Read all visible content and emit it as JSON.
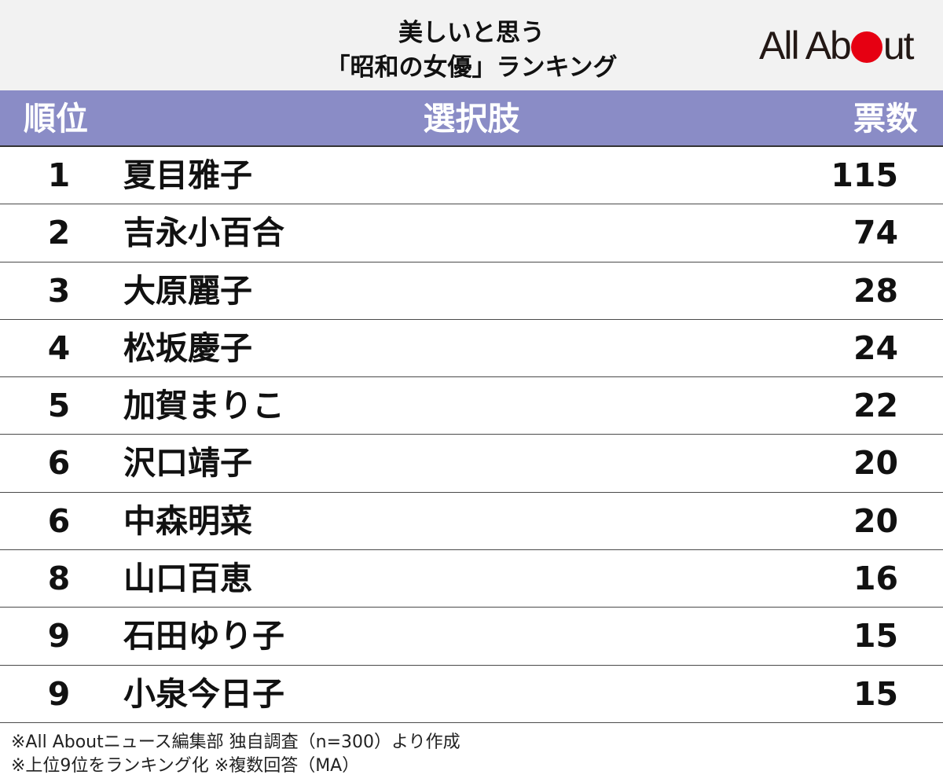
{
  "title": {
    "line1": "美しいと思う",
    "line2": "「昭和の女優」ランキング"
  },
  "logo": {
    "text_before": "All Ab",
    "text_after": "ut",
    "dot_color": "#e60012"
  },
  "colors": {
    "header_bg": "#8a8cc6",
    "title_bg": "#f2f2f2",
    "header_text": "#ffffff"
  },
  "chart_data": {
    "type": "table",
    "columns": [
      "順位",
      "選択肢",
      "票数"
    ],
    "rows": [
      {
        "rank": "1",
        "name": "夏目雅子",
        "votes": 115
      },
      {
        "rank": "2",
        "name": "吉永小百合",
        "votes": 74
      },
      {
        "rank": "3",
        "name": "大原麗子",
        "votes": 28
      },
      {
        "rank": "4",
        "name": "松坂慶子",
        "votes": 24
      },
      {
        "rank": "5",
        "name": "加賀まりこ",
        "votes": 22
      },
      {
        "rank": "6",
        "name": "沢口靖子",
        "votes": 20
      },
      {
        "rank": "6",
        "name": "中森明菜",
        "votes": 20
      },
      {
        "rank": "8",
        "name": "山口百恵",
        "votes": 16
      },
      {
        "rank": "9",
        "name": "石田ゆり子",
        "votes": 15
      },
      {
        "rank": "9",
        "name": "小泉今日子",
        "votes": 15
      }
    ]
  },
  "notes": {
    "line1": "※All Aboutニュース編集部 独自調査（n=300）より作成",
    "line2": "※上位9位をランキング化 ※複数回答（MA）"
  }
}
